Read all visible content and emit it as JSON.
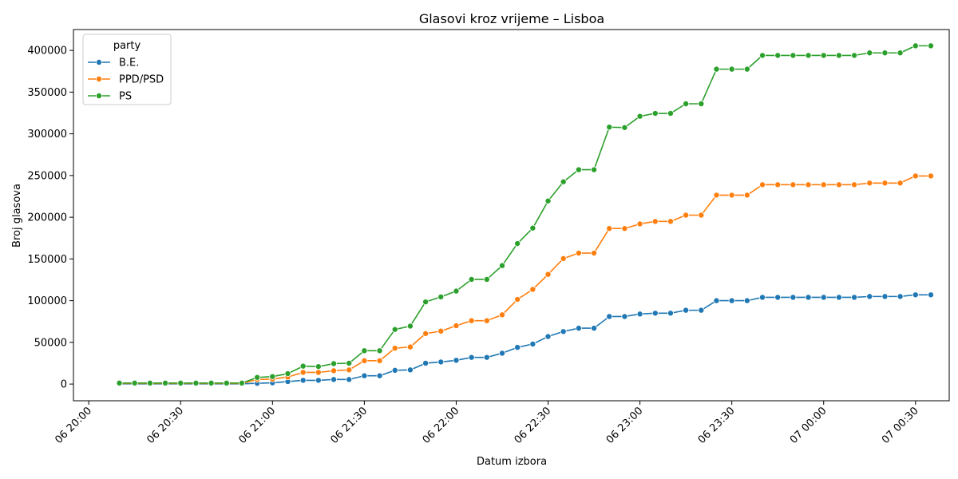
{
  "chart_data": {
    "type": "line",
    "title": "Glasovi kroz vrijeme – Lisboa",
    "xlabel": "Datum izbora",
    "ylabel": "Broj glasova",
    "x_ticks": [
      "06 20:00",
      "06 20:30",
      "06 21:00",
      "06 21:30",
      "06 22:00",
      "06 22:30",
      "06 23:00",
      "06 23:30",
      "07 00:00",
      "07 00:30"
    ],
    "y_ticks": [
      "0",
      "50000",
      "100000",
      "150000",
      "200000",
      "250000",
      "300000",
      "350000",
      "400000"
    ],
    "ylim": [
      -20000,
      425000
    ],
    "xlim": [
      "2023-11-06 19:55",
      "2023-11-07 00:41"
    ],
    "legend": {
      "title": "party",
      "position": "top-left"
    },
    "x": [
      "20:10",
      "20:15",
      "20:20",
      "20:25",
      "20:30",
      "20:35",
      "20:40",
      "20:45",
      "20:50",
      "20:55",
      "21:00",
      "21:05",
      "21:10",
      "21:15",
      "21:20",
      "21:25",
      "21:30",
      "21:35",
      "21:40",
      "21:45",
      "21:50",
      "21:55",
      "22:00",
      "22:05",
      "22:10",
      "22:15",
      "22:20",
      "22:25",
      "22:30",
      "22:35",
      "22:40",
      "22:45",
      "22:50",
      "22:55",
      "23:00",
      "23:05",
      "23:10",
      "23:15",
      "23:20",
      "23:25",
      "23:30",
      "23:35",
      "23:40",
      "23:45",
      "23:50",
      "23:55",
      "00:00",
      "00:05",
      "00:10",
      "00:15",
      "00:20",
      "00:25",
      "00:30",
      "00:35"
    ],
    "series": [
      {
        "name": "B.E.",
        "color": "#1f77b4",
        "values": [
          300,
          300,
          300,
          300,
          300,
          300,
          300,
          300,
          300,
          1000,
          1500,
          3000,
          4500,
          4500,
          5500,
          5500,
          10000,
          10000,
          16500,
          17000,
          25000,
          26500,
          28500,
          32000,
          32000,
          37000,
          44000,
          48000,
          57000,
          63000,
          67000,
          67000,
          81000,
          81000,
          84000,
          85000,
          85000,
          88500,
          88500,
          100000,
          100000,
          100000,
          104000,
          104000,
          104000,
          104000,
          104000,
          104000,
          104000,
          105000,
          105000,
          105000,
          107000,
          107000
        ]
      },
      {
        "name": "PPD/PSD",
        "color": "#ff7f0e",
        "values": [
          700,
          700,
          700,
          700,
          700,
          700,
          700,
          700,
          700,
          5500,
          6000,
          8500,
          14000,
          14000,
          16000,
          17000,
          28000,
          28000,
          43000,
          44500,
          60500,
          63500,
          70000,
          76000,
          76000,
          83000,
          101500,
          113500,
          131500,
          150500,
          157000,
          157000,
          186500,
          186500,
          192000,
          195000,
          195000,
          202500,
          202500,
          226500,
          226500,
          226500,
          239000,
          239000,
          239000,
          239000,
          239000,
          239000,
          239000,
          241000,
          241000,
          241000,
          249500,
          249500
        ]
      },
      {
        "name": "PS",
        "color": "#2ca02c",
        "values": [
          1200,
          1200,
          1200,
          1200,
          1200,
          1200,
          1200,
          1200,
          1200,
          8000,
          9000,
          12500,
          21500,
          21000,
          24500,
          25000,
          40000,
          40000,
          65500,
          69500,
          98500,
          104500,
          111500,
          125500,
          125500,
          142000,
          168500,
          187000,
          219500,
          242500,
          257000,
          257000,
          308000,
          307500,
          321000,
          324500,
          324500,
          336000,
          336000,
          377500,
          377500,
          377500,
          394000,
          394000,
          394000,
          394000,
          394000,
          394000,
          394000,
          397000,
          397000,
          397000,
          405500,
          405500
        ]
      }
    ]
  }
}
